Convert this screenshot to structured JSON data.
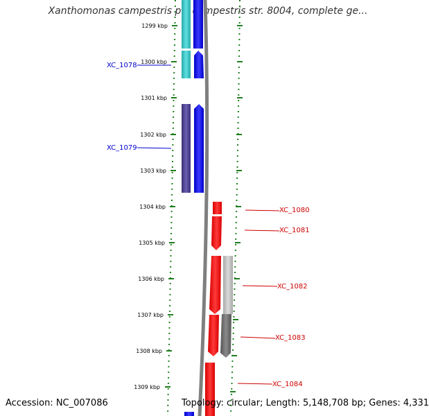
{
  "title": "Xanthomonas campestris pv. campestris str. 8004, complete ge...",
  "footer": {
    "accession": "Accession: NC_007086",
    "topology": "Topology: circular; Length: 5,148,708 bp; Genes: 4,331"
  },
  "scale_labels": [
    "1299 kbp",
    "1300 kbp",
    "1301 kbp",
    "1302 kbp",
    "1303 kbp",
    "1304 kbp",
    "1305 kbp",
    "1306 kbp",
    "1307 kbp",
    "1308 kbp",
    "1309 kbp"
  ],
  "colors": {
    "forward_label": "#0000cc",
    "reverse_label": "#cc0000",
    "cyan": "#33c5c5",
    "indigo": "#4a3f8c",
    "blue": "#1010ee",
    "red": "#ee1111",
    "gray_light": "#bdbdbd",
    "gray_dark": "#6e6e6e",
    "tick_green": "#1e7e1e",
    "backbone": "#7f7f7f"
  },
  "gene_labels": [
    {
      "text": "XC_1078",
      "strand": "forward"
    },
    {
      "text": "XC_1079",
      "strand": "forward"
    },
    {
      "text": "XC_1080",
      "strand": "reverse"
    },
    {
      "text": "XC_1081",
      "strand": "reverse"
    },
    {
      "text": "XC_1082",
      "strand": "reverse"
    },
    {
      "text": "XC_1083",
      "strand": "reverse"
    },
    {
      "text": "XC_1084",
      "strand": "reverse"
    }
  ]
}
